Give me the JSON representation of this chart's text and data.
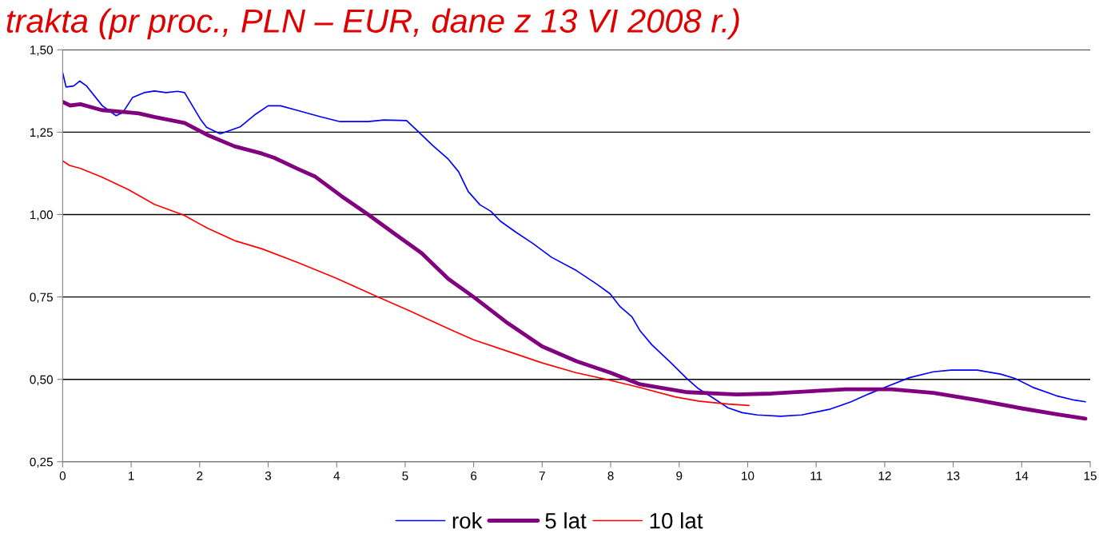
{
  "chart_data": {
    "type": "line",
    "title": "trakta (pr proc., PLN – EUR, dane z 13 VI 2008 r.)",
    "xlim": [
      0,
      15
    ],
    "xticks": [
      0,
      1,
      2,
      3,
      4,
      5,
      6,
      7,
      8,
      9,
      10,
      11,
      12,
      13,
      14,
      15
    ],
    "ylim": [
      0.25,
      1.5
    ],
    "yticks": [
      {
        "value": 0.25,
        "label": "0,25"
      },
      {
        "value": 0.5,
        "label": "0,50"
      },
      {
        "value": 0.75,
        "label": "0,75"
      },
      {
        "value": 1.0,
        "label": "1,00"
      },
      {
        "value": 1.25,
        "label": "1,25"
      },
      {
        "value": 1.5,
        "label": "1,50"
      }
    ],
    "grid": "y",
    "legend": "bottom",
    "marker": "none",
    "line_style": "solid",
    "series": [
      {
        "name": "rok",
        "color": "#0000ff",
        "x": [
          0,
          0.05,
          0.16,
          0.25,
          0.35,
          0.58,
          0.78,
          0.88,
          1.02,
          1.19,
          1.34,
          1.51,
          1.68,
          1.78,
          2.01,
          2.1,
          2.3,
          2.59,
          2.82,
          3.0,
          3.18,
          3.41,
          3.76,
          4.05,
          4.46,
          4.69,
          5.02,
          5.16,
          5.4,
          5.63,
          5.78,
          5.92,
          6.09,
          6.25,
          6.39,
          6.62,
          6.86,
          7.14,
          7.5,
          7.79,
          7.99,
          8.14,
          8.31,
          8.43,
          8.6,
          8.86,
          9.12,
          9.28,
          9.5,
          9.71,
          9.92,
          10.14,
          10.48,
          10.79,
          11.21,
          11.51,
          11.77,
          11.98,
          12.36,
          12.71,
          12.97,
          13.35,
          13.69,
          13.9,
          14.16,
          14.51,
          14.77,
          14.93
        ],
        "values": [
          1.431,
          1.387,
          1.39,
          1.405,
          1.39,
          1.33,
          1.3,
          1.31,
          1.355,
          1.37,
          1.375,
          1.37,
          1.374,
          1.37,
          1.29,
          1.265,
          1.245,
          1.266,
          1.305,
          1.33,
          1.33,
          1.317,
          1.297,
          1.282,
          1.282,
          1.287,
          1.285,
          1.258,
          1.21,
          1.168,
          1.13,
          1.07,
          1.03,
          1.01,
          0.98,
          0.946,
          0.913,
          0.87,
          0.83,
          0.79,
          0.76,
          0.72,
          0.69,
          0.647,
          0.605,
          0.554,
          0.501,
          0.472,
          0.443,
          0.414,
          0.399,
          0.392,
          0.388,
          0.392,
          0.41,
          0.432,
          0.456,
          0.474,
          0.505,
          0.523,
          0.528,
          0.528,
          0.516,
          0.503,
          0.476,
          0.45,
          0.437,
          0.432
        ]
      },
      {
        "name": "5 lat",
        "color": "#800080",
        "x": [
          0,
          0.11,
          0.26,
          0.57,
          0.96,
          1.11,
          1.34,
          1.78,
          2.13,
          2.51,
          2.91,
          3.09,
          3.44,
          3.68,
          4.07,
          4.46,
          4.85,
          5.24,
          5.63,
          6.0,
          6.5,
          7.0,
          7.5,
          8.0,
          8.43,
          9.12,
          9.84,
          10.35,
          11.0,
          11.43,
          12.1,
          12.71,
          13.35,
          14.0,
          14.51,
          14.93
        ],
        "values": [
          1.342,
          1.331,
          1.335,
          1.317,
          1.31,
          1.307,
          1.296,
          1.278,
          1.24,
          1.207,
          1.185,
          1.172,
          1.138,
          1.116,
          1.056,
          1.0,
          0.941,
          0.883,
          0.805,
          0.75,
          0.67,
          0.6,
          0.555,
          0.52,
          0.485,
          0.461,
          0.454,
          0.457,
          0.465,
          0.47,
          0.47,
          0.459,
          0.437,
          0.412,
          0.394,
          0.381
        ]
      },
      {
        "name": "10 lat",
        "color": "#ff0000",
        "x": [
          0,
          0.1,
          0.26,
          0.57,
          0.96,
          1.34,
          1.77,
          2.12,
          2.51,
          2.91,
          3.44,
          3.99,
          4.58,
          5.04,
          5.63,
          6.0,
          6.5,
          7.0,
          7.5,
          8.0,
          8.43,
          8.94,
          9.28,
          9.71,
          10.02
        ],
        "values": [
          1.163,
          1.149,
          1.14,
          1.114,
          1.076,
          1.031,
          0.998,
          0.958,
          0.921,
          0.896,
          0.854,
          0.807,
          0.752,
          0.71,
          0.654,
          0.62,
          0.585,
          0.55,
          0.52,
          0.497,
          0.475,
          0.447,
          0.434,
          0.425,
          0.421
        ]
      }
    ]
  }
}
